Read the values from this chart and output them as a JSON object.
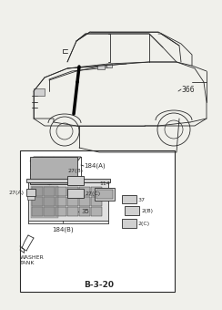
{
  "background_color": "#f0f0eb",
  "line_color": "#2a2a2a",
  "title": "B-3-20",
  "label_366": "366",
  "label_184A": "184(A)",
  "label_27B": "27(B)",
  "label_27C": "27(C)",
  "label_27A": "27(A)",
  "label_114": "114",
  "label_37": "37",
  "label_35": "35",
  "label_2B": "2(B)",
  "label_2C": "2(C)",
  "label_184B": "184(B)",
  "label_washer": "WASHER\nTANK",
  "fill_light": "#d0d0d0",
  "fill_mid": "#b0b0b0",
  "fill_dark": "#888888",
  "white": "#ffffff"
}
